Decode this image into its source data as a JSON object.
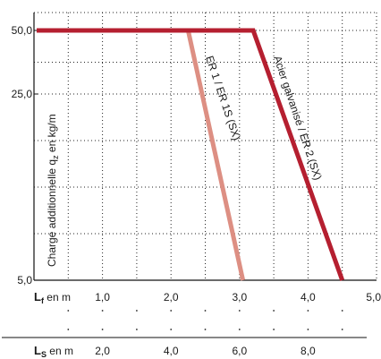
{
  "chart_data": {
    "type": "line",
    "y_ticks": [
      "50,0",
      "25,0",
      "5,0"
    ],
    "y_tick_values": [
      50,
      25,
      5
    ],
    "ylabel": {
      "prefix": "Charge additionnelle q",
      "sub": "z",
      "suffix": " en kg/m"
    },
    "x_primary": {
      "label_main": "L",
      "label_sub": "f",
      "label_suffix": " en m",
      "ticks": [
        "1,0",
        "2,0",
        "3,0",
        "4,0",
        "5,0"
      ],
      "tick_values": [
        1,
        2,
        3,
        4,
        5
      ],
      "range": [
        0,
        5
      ]
    },
    "x_secondary": {
      "label_main": "L",
      "label_sub": "S",
      "label_suffix": " en m",
      "ticks": [
        "2,0",
        "4,0",
        "6,0",
        "8,0"
      ],
      "tick_values": [
        2,
        4,
        6,
        8
      ]
    },
    "series": [
      {
        "name": "ER 1 / ER 1S (SX)",
        "color": "#dd8f83",
        "points": [
          [
            2.25,
            50
          ],
          [
            3.05,
            5
          ]
        ]
      },
      {
        "name": "Acier galvanisé / ER 2 (SX)",
        "color": "#b51f30",
        "points": [
          [
            0,
            50
          ],
          [
            3.2,
            50
          ],
          [
            4.5,
            5
          ]
        ]
      }
    ],
    "grid": "dotted"
  }
}
